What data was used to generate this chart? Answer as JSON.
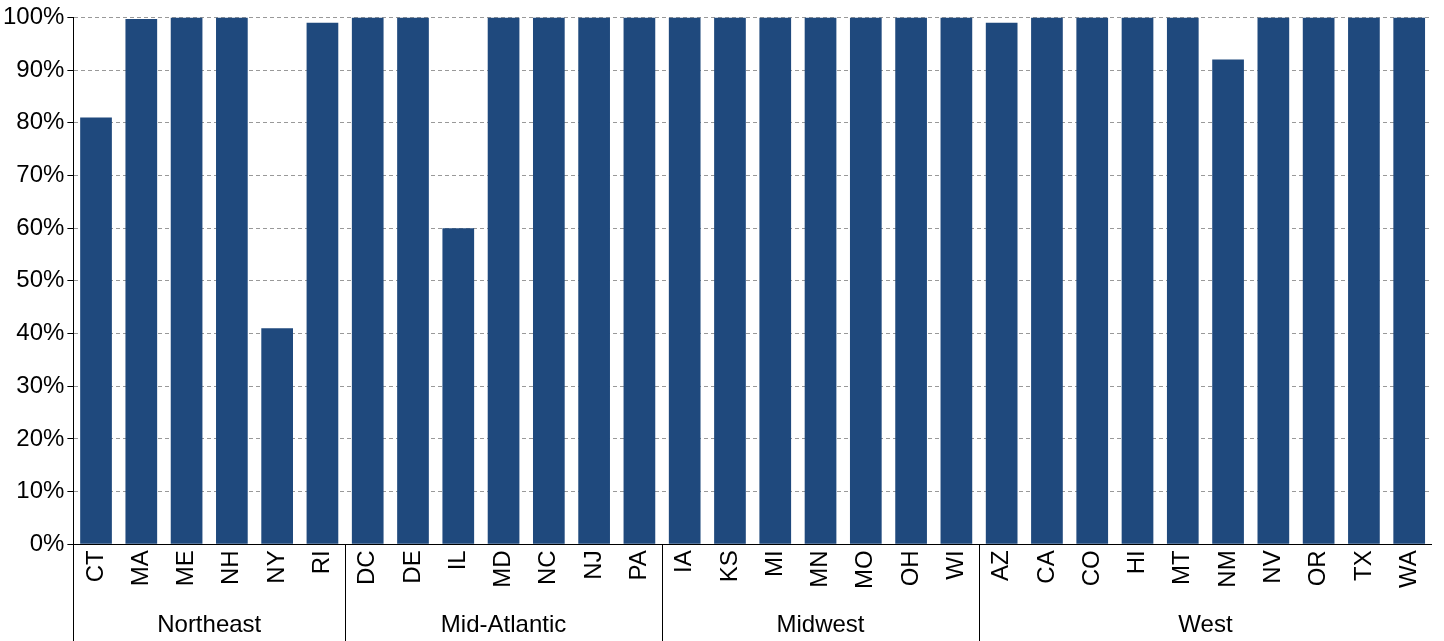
{
  "chart_data": {
    "type": "bar",
    "categories": [
      "CT",
      "MA",
      "ME",
      "NH",
      "NY",
      "RI",
      "DC",
      "DE",
      "IL",
      "MD",
      "NC",
      "NJ",
      "PA",
      "IA",
      "KS",
      "MI",
      "MN",
      "MO",
      "OH",
      "WI",
      "AZ",
      "CA",
      "CO",
      "HI",
      "MT",
      "NM",
      "NV",
      "OR",
      "TX",
      "WA"
    ],
    "values": [
      81,
      99.7,
      100,
      100,
      41,
      99,
      100,
      100,
      60,
      100,
      100,
      100,
      100,
      100,
      100,
      100,
      100,
      100,
      100,
      100,
      99,
      100,
      100,
      100,
      100,
      92,
      100,
      100,
      100,
      100
    ],
    "color": "#1f497d",
    "ylim": [
      0,
      100
    ],
    "yticks": [
      {
        "value": 0,
        "label": "0%"
      },
      {
        "value": 10,
        "label": "10%"
      },
      {
        "value": 20,
        "label": "20%"
      },
      {
        "value": 30,
        "label": "30%"
      },
      {
        "value": 40,
        "label": "40%"
      },
      {
        "value": 50,
        "label": "50%"
      },
      {
        "value": 60,
        "label": "60%"
      },
      {
        "value": 70,
        "label": "70%"
      },
      {
        "value": 80,
        "label": "80%"
      },
      {
        "value": 90,
        "label": "90%"
      },
      {
        "value": 100,
        "label": "100%"
      }
    ],
    "grid": "y",
    "annotations": [
      "Northeast",
      "Mid-Atlantic",
      "Midwest",
      "West"
    ]
  }
}
